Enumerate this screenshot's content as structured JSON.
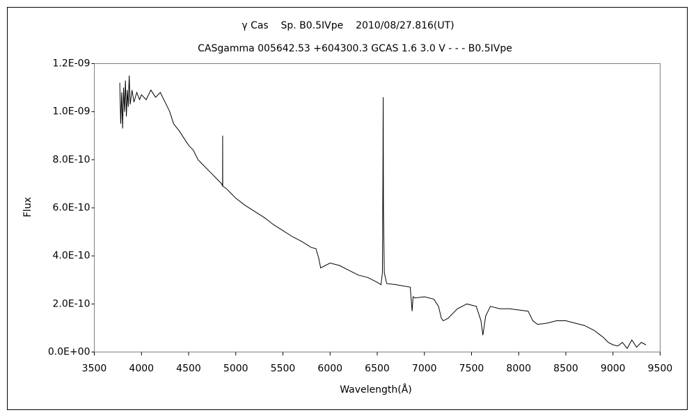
{
  "chart_data": {
    "type": "line",
    "title": "γ Cas    Sp. B0.5IVpe    2010/08/27.816(UT)",
    "subtitle": "CASgamma 005642.53 +604300.3 GCAS 1.6 3.0 V - - - B0.5IVpe",
    "x_label": "Wavelength(Å)",
    "y_label": "Flux",
    "xlim": [
      3500,
      9500
    ],
    "ylim": [
      0,
      1.2e-09
    ],
    "xticks": [
      3500,
      4000,
      4500,
      5000,
      5500,
      6000,
      6500,
      7000,
      7500,
      8000,
      8500,
      9000,
      9500
    ],
    "yticks": [
      {
        "value": 0,
        "label": "0.0E+00"
      },
      {
        "value": 2e-10,
        "label": "2.0E-10"
      },
      {
        "value": 4e-10,
        "label": "4.0E-10"
      },
      {
        "value": 6e-10,
        "label": "6.0E-10"
      },
      {
        "value": 8e-10,
        "label": "8.0E-10"
      },
      {
        "value": 1e-09,
        "label": "1.0E-09"
      },
      {
        "value": 1.2e-09,
        "label": "1.2E-09"
      }
    ],
    "grid": false,
    "series": [
      {
        "color": "#000000",
        "x": [
          3770,
          3780,
          3790,
          3800,
          3810,
          3820,
          3830,
          3840,
          3850,
          3860,
          3870,
          3880,
          3900,
          3920,
          3950,
          3980,
          4000,
          4050,
          4100,
          4150,
          4200,
          4250,
          4300,
          4340,
          4400,
          4450,
          4500,
          4550,
          4600,
          4650,
          4700,
          4750,
          4800,
          4850,
          4860,
          4861,
          4862,
          4900,
          4950,
          5000,
          5100,
          5200,
          5300,
          5400,
          5500,
          5600,
          5700,
          5800,
          5850,
          5880,
          5900,
          5950,
          6000,
          6100,
          6200,
          6300,
          6400,
          6500,
          6540,
          6555,
          6560,
          6563,
          6566,
          6575,
          6600,
          6700,
          6850,
          6870,
          6880,
          6900,
          7000,
          7100,
          7150,
          7180,
          7200,
          7250,
          7300,
          7350,
          7450,
          7550,
          7600,
          7620,
          7650,
          7700,
          7800,
          7900,
          8000,
          8100,
          8150,
          8200,
          8300,
          8400,
          8500,
          8600,
          8700,
          8800,
          8850,
          8900,
          8950,
          9000,
          9050,
          9100,
          9150,
          9200,
          9250,
          9300,
          9350
        ],
        "values": [
          1.12e-09,
          9.5e-10,
          1.08e-09,
          9.3e-10,
          1.1e-09,
          1e-09,
          1.13e-09,
          9.8e-10,
          1.09e-09,
          1.02e-09,
          1.15e-09,
          1.03e-09,
          1.09e-09,
          1.04e-09,
          1.08e-09,
          1.05e-09,
          1.07e-09,
          1.05e-09,
          1.09e-09,
          1.06e-09,
          1.08e-09,
          1.04e-09,
          1e-09,
          9.5e-10,
          9.2e-10,
          8.9e-10,
          8.6e-10,
          8.4e-10,
          8e-10,
          7.8e-10,
          7.6e-10,
          7.4e-10,
          7.2e-10,
          7e-10,
          6.9e-10,
          9e-10,
          6.9e-10,
          6.8e-10,
          6.6e-10,
          6.4e-10,
          6.1e-10,
          5.85e-10,
          5.6e-10,
          5.3e-10,
          5.05e-10,
          4.8e-10,
          4.6e-10,
          4.35e-10,
          4.3e-10,
          3.9e-10,
          3.5e-10,
          3.6e-10,
          3.7e-10,
          3.6e-10,
          3.4e-10,
          3.2e-10,
          3.1e-10,
          2.9e-10,
          2.8e-10,
          3.3e-10,
          7e-10,
          1.06e-09,
          6e-10,
          3.3e-10,
          2.85e-10,
          2.8e-10,
          2.7e-10,
          1.7e-10,
          2.3e-10,
          2.25e-10,
          2.3e-10,
          2.2e-10,
          1.9e-10,
          1.4e-10,
          1.3e-10,
          1.4e-10,
          1.6e-10,
          1.8e-10,
          2e-10,
          1.9e-10,
          1.3e-10,
          7e-11,
          1.5e-10,
          1.9e-10,
          1.8e-10,
          1.8e-10,
          1.75e-10,
          1.7e-10,
          1.3e-10,
          1.15e-10,
          1.2e-10,
          1.3e-10,
          1.3e-10,
          1.2e-10,
          1.1e-10,
          9e-11,
          7.5e-11,
          6e-11,
          4e-11,
          3e-11,
          2.5e-11,
          4e-11,
          1.5e-11,
          5e-11,
          2e-11,
          4e-11,
          3e-11
        ]
      }
    ]
  }
}
